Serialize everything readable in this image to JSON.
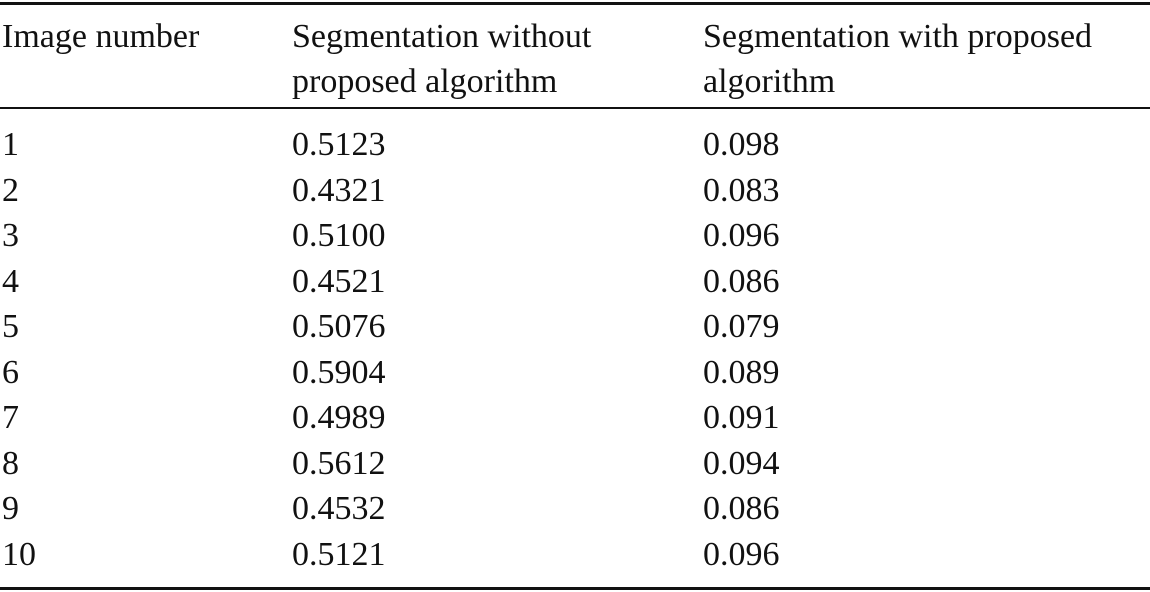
{
  "table": {
    "headers": [
      "Image number",
      "Segmentation without proposed algorithm",
      "Segmentation with proposed algorithm"
    ],
    "rows": [
      [
        "1",
        "0.5123",
        "0.098"
      ],
      [
        "2",
        "0.4321",
        "0.083"
      ],
      [
        "3",
        "0.5100",
        "0.096"
      ],
      [
        "4",
        "0.4521",
        "0.086"
      ],
      [
        "5",
        "0.5076",
        "0.079"
      ],
      [
        "6",
        "0.5904",
        "0.089"
      ],
      [
        "7",
        "0.4989",
        "0.091"
      ],
      [
        "8",
        "0.5612",
        "0.094"
      ],
      [
        "9",
        "0.4532",
        "0.086"
      ],
      [
        "10",
        "0.5121",
        "0.096"
      ]
    ]
  }
}
